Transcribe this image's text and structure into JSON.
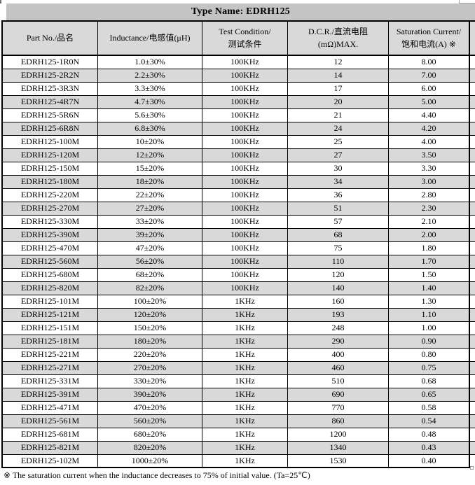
{
  "title": "Type Name: EDRH125",
  "table": {
    "columns": [
      {
        "line1": "Part No./品名",
        "line2": ""
      },
      {
        "line1": "Inductance/电感值(μH)",
        "line2": ""
      },
      {
        "line1": "Test Condition/",
        "line2": "测试条件"
      },
      {
        "line1": "D.C.R./直流电阻",
        "line2": "(mΩ)MAX."
      },
      {
        "line1": "Saturation Current/",
        "line2": "饱和电流(A)  ※"
      }
    ],
    "rows": [
      [
        "EDRH125-1R0N",
        "1.0±30%",
        "100KHz",
        "12",
        "8.00"
      ],
      [
        "EDRH125-2R2N",
        "2.2±30%",
        "100KHz",
        "14",
        "7.00"
      ],
      [
        "EDRH125-3R3N",
        "3.3±30%",
        "100KHz",
        "17",
        "6.00"
      ],
      [
        "EDRH125-4R7N",
        "4.7±30%",
        "100KHz",
        "20",
        "5.00"
      ],
      [
        "EDRH125-5R6N",
        "5.6±30%",
        "100KHz",
        "21",
        "4.40"
      ],
      [
        "EDRH125-6R8N",
        "6.8±30%",
        "100KHz",
        "24",
        "4.20"
      ],
      [
        "EDRH125-100M",
        "10±20%",
        "100KHz",
        "25",
        "4.00"
      ],
      [
        "EDRH125-120M",
        "12±20%",
        "100KHz",
        "27",
        "3.50"
      ],
      [
        "EDRH125-150M",
        "15±20%",
        "100KHz",
        "30",
        "3.30"
      ],
      [
        "EDRH125-180M",
        "18±20%",
        "100KHz",
        "34",
        "3.00"
      ],
      [
        "EDRH125-220M",
        "22±20%",
        "100KHz",
        "36",
        "2.80"
      ],
      [
        "EDRH125-270M",
        "27±20%",
        "100KHz",
        "51",
        "2.30"
      ],
      [
        "EDRH125-330M",
        "33±20%",
        "100KHz",
        "57",
        "2.10"
      ],
      [
        "EDRH125-390M",
        "39±20%",
        "100KHz",
        "68",
        "2.00"
      ],
      [
        "EDRH125-470M",
        "47±20%",
        "100KHz",
        "75",
        "1.80"
      ],
      [
        "EDRH125-560M",
        "56±20%",
        "100KHz",
        "110",
        "1.70"
      ],
      [
        "EDRH125-680M",
        "68±20%",
        "100KHz",
        "120",
        "1.50"
      ],
      [
        "EDRH125-820M",
        "82±20%",
        "100KHz",
        "140",
        "1.40"
      ],
      [
        "EDRH125-101M",
        "100±20%",
        "1KHz",
        "160",
        "1.30"
      ],
      [
        "EDRH125-121M",
        "120±20%",
        "1KHz",
        "193",
        "1.10"
      ],
      [
        "EDRH125-151M",
        "150±20%",
        "1KHz",
        "248",
        "1.00"
      ],
      [
        "EDRH125-181M",
        "180±20%",
        "1KHz",
        "290",
        "0.90"
      ],
      [
        "EDRH125-221M",
        "220±20%",
        "1KHz",
        "400",
        "0.80"
      ],
      [
        "EDRH125-271M",
        "270±20%",
        "1KHz",
        "460",
        "0.75"
      ],
      [
        "EDRH125-331M",
        "330±20%",
        "1KHz",
        "510",
        "0.68"
      ],
      [
        "EDRH125-391M",
        "390±20%",
        "1KHz",
        "690",
        "0.65"
      ],
      [
        "EDRH125-471M",
        "470±20%",
        "1KHz",
        "770",
        "0.58"
      ],
      [
        "EDRH125-561M",
        "560±20%",
        "1KHz",
        "860",
        "0.54"
      ],
      [
        "EDRH125-681M",
        "680±20%",
        "1KHz",
        "1200",
        "0.48"
      ],
      [
        "EDRH125-821M",
        "820±20%",
        "1KHz",
        "1340",
        "0.43"
      ],
      [
        "EDRH125-102M",
        "1000±20%",
        "1KHz",
        "1530",
        "0.40"
      ]
    ]
  },
  "footnote": "※  The saturation current when the inductance decreases to 75% of initial value. (Ta=25℃)",
  "colors": {
    "title_bg": "#c4c4c4",
    "stripe_bg": "#d9d9d9",
    "border": "#000000"
  }
}
